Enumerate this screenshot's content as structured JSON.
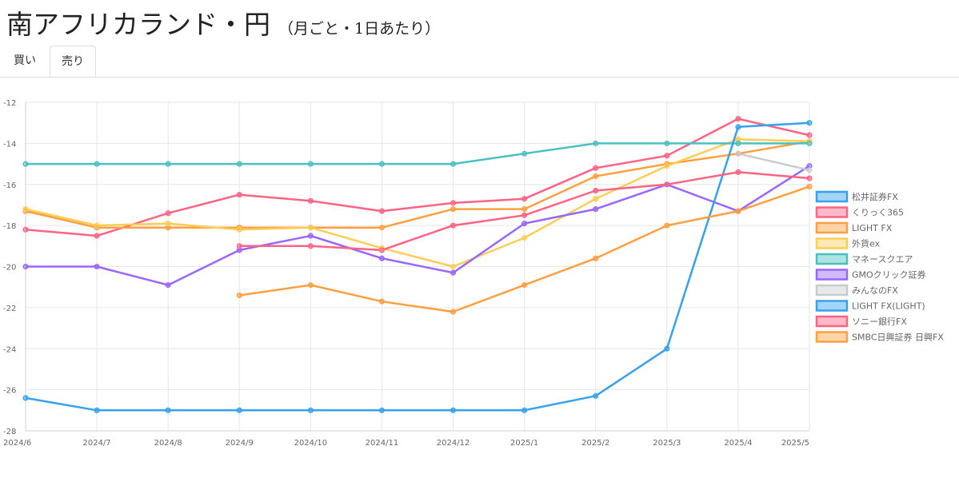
{
  "page": {
    "title": "南アフリカランド・円",
    "subtitle": "（月ごと・1日あたり）"
  },
  "tabs": [
    {
      "label": "買い",
      "active": false
    },
    {
      "label": "売り",
      "active": true
    }
  ],
  "chart_data": {
    "type": "line",
    "x": [
      "2024/6",
      "2024/7",
      "2024/8",
      "2024/9",
      "2024/10",
      "2024/11",
      "2024/12",
      "2025/1",
      "2025/2",
      "2025/3",
      "2025/4",
      "2025/5"
    ],
    "ylim": [
      -28,
      -12
    ],
    "yticks": [
      -12,
      -14,
      -16,
      -18,
      -20,
      -22,
      -24,
      -26,
      -28
    ],
    "grid": true,
    "legend_position": "right",
    "series": [
      {
        "name": "松井証券FX",
        "color": "#36a2eb",
        "values": [
          null,
          null,
          null,
          null,
          null,
          null,
          null,
          null,
          null,
          null,
          null,
          null
        ]
      },
      {
        "name": "くりっく365",
        "color": "#ff6384",
        "values": [
          -18.2,
          -18.5,
          -17.4,
          -16.5,
          -16.8,
          -17.3,
          -16.9,
          -16.7,
          -15.2,
          -14.6,
          -12.8,
          -13.6
        ]
      },
      {
        "name": "LIGHT FX",
        "color": "#ff9f40",
        "values": [
          -17.3,
          -18.1,
          -18.1,
          -18.1,
          -18.1,
          -18.1,
          -17.2,
          -17.2,
          -15.6,
          -15.0,
          -14.5,
          -13.9
        ]
      },
      {
        "name": "外貨ex",
        "color": "#ffcd56",
        "values": [
          -17.2,
          -18.0,
          -17.9,
          -18.2,
          -18.1,
          -19.1,
          -20.0,
          -18.6,
          -16.7,
          -15.1,
          -13.8,
          -13.9
        ]
      },
      {
        "name": "マネースクエア",
        "color": "#4bc0c0",
        "values": [
          -15.0,
          -15.0,
          -15.0,
          -15.0,
          -15.0,
          -15.0,
          -15.0,
          -14.5,
          -14.0,
          -14.0,
          -14.0,
          -14.0
        ]
      },
      {
        "name": "GMOクリック証券",
        "color": "#9966ff",
        "values": [
          -20.0,
          -20.0,
          -20.9,
          -19.2,
          -18.5,
          -19.6,
          -20.3,
          -17.9,
          -17.2,
          -16.0,
          -17.3,
          -15.1
        ]
      },
      {
        "name": "みんなのFX",
        "color": "#c9cbcf",
        "values": [
          null,
          null,
          null,
          null,
          null,
          null,
          null,
          null,
          null,
          null,
          -14.5,
          -15.3
        ]
      },
      {
        "name": "LIGHT FX(LIGHT)",
        "color": "#36a2eb",
        "values": [
          -26.4,
          -27.0,
          -27.0,
          -27.0,
          -27.0,
          -27.0,
          -27.0,
          -27.0,
          -26.3,
          -24.0,
          -13.2,
          -13.0
        ]
      },
      {
        "name": "ソニー銀行FX",
        "color": "#ff6384",
        "values": [
          null,
          null,
          null,
          -19.0,
          -19.0,
          -19.2,
          -18.0,
          -17.5,
          -16.3,
          -16.0,
          -15.4,
          -15.7
        ]
      },
      {
        "name": "SMBC日興証券 日興FX",
        "color": "#ff9f40",
        "values": [
          null,
          null,
          null,
          -21.4,
          -20.9,
          -21.7,
          -22.2,
          -20.9,
          -19.6,
          -18.0,
          -17.3,
          -16.1
        ]
      }
    ]
  }
}
